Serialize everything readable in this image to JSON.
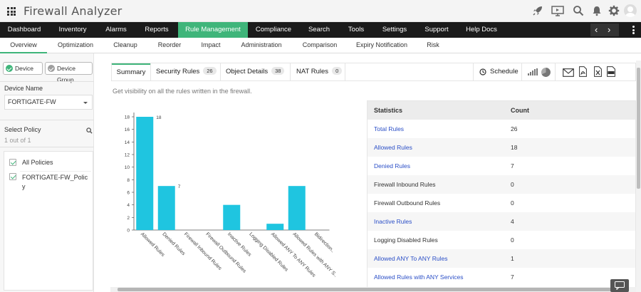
{
  "app": {
    "title": "Firewall Analyzer"
  },
  "top_icons": [
    "rocket-icon",
    "monitor-icon",
    "search-icon",
    "bell-icon",
    "gear-icon",
    "user-avatar-icon"
  ],
  "nav": {
    "items": [
      "Dashboard",
      "Inventory",
      "Alarms",
      "Reports",
      "Rule Management",
      "Compliance",
      "Search",
      "Tools",
      "Settings",
      "Support",
      "Help Docs"
    ],
    "active": "Rule Management"
  },
  "subnav": {
    "items": [
      "Overview",
      "Optimization",
      "Cleanup",
      "Reorder",
      "Impact",
      "Administration",
      "Comparison",
      "Expiry Notification",
      "Risk"
    ],
    "active": "Overview"
  },
  "sidebar": {
    "device_btn": "Device",
    "device_group_btn": "Device Group",
    "device_name_label": "Device Name",
    "device_name_value": "FORTIGATE-FW",
    "select_policy_label": "Select Policy",
    "count_text": "1 out of 1",
    "policies": [
      "All Policies",
      "FORTIGATE-FW_Policy"
    ]
  },
  "tabs": {
    "summary": "Summary",
    "security_rules": "Security Rules",
    "security_rules_count": "26",
    "object_details": "Object Details",
    "object_details_count": "38",
    "nat_rules": "NAT Rules",
    "nat_rules_count": "0",
    "schedule": "Schedule"
  },
  "description": "Get visibility on all the rules written in the firewall.",
  "stats": {
    "headers": [
      "Statistics",
      "Count"
    ],
    "rows": [
      {
        "label": "Total Rules",
        "count": "26",
        "link": true
      },
      {
        "label": "Allowed Rules",
        "count": "18",
        "link": true
      },
      {
        "label": "Denied Rules",
        "count": "7",
        "link": true
      },
      {
        "label": "Firewall Inbound Rules",
        "count": "0",
        "link": false
      },
      {
        "label": "Firewall Outbound Rules",
        "count": "0",
        "link": false
      },
      {
        "label": "Inactive Rules",
        "count": "4",
        "link": true
      },
      {
        "label": "Logging Disabled Rules",
        "count": "0",
        "link": false
      },
      {
        "label": "Allowed ANY To ANY Rules",
        "count": "1",
        "link": true
      },
      {
        "label": "Allowed Rules with ANY Services",
        "count": "7",
        "link": true
      }
    ]
  },
  "chart_data": {
    "type": "bar",
    "categories": [
      "Allowed Rules",
      "Denied Rules",
      "Firewall Inbound Rules",
      "Firewall Outbound Rules",
      "Inactive Rules",
      "Logging Disabled Rules",
      "Allowed ANY To ANY Rules",
      "Allowed Rules with ANY S..",
      "Bidirection.."
    ],
    "values": [
      18,
      7,
      0,
      0,
      4,
      0,
      1,
      7,
      0
    ],
    "data_labels": [
      "18",
      "7",
      "",
      "",
      "",
      "",
      "",
      "",
      ""
    ],
    "yticks": [
      0,
      2,
      4,
      6,
      8,
      10,
      12,
      14,
      16,
      18
    ],
    "ylim": [
      0,
      18
    ],
    "color": "#1fc5e0",
    "title": "",
    "xlabel": "",
    "ylabel": "",
    "grid": false
  }
}
